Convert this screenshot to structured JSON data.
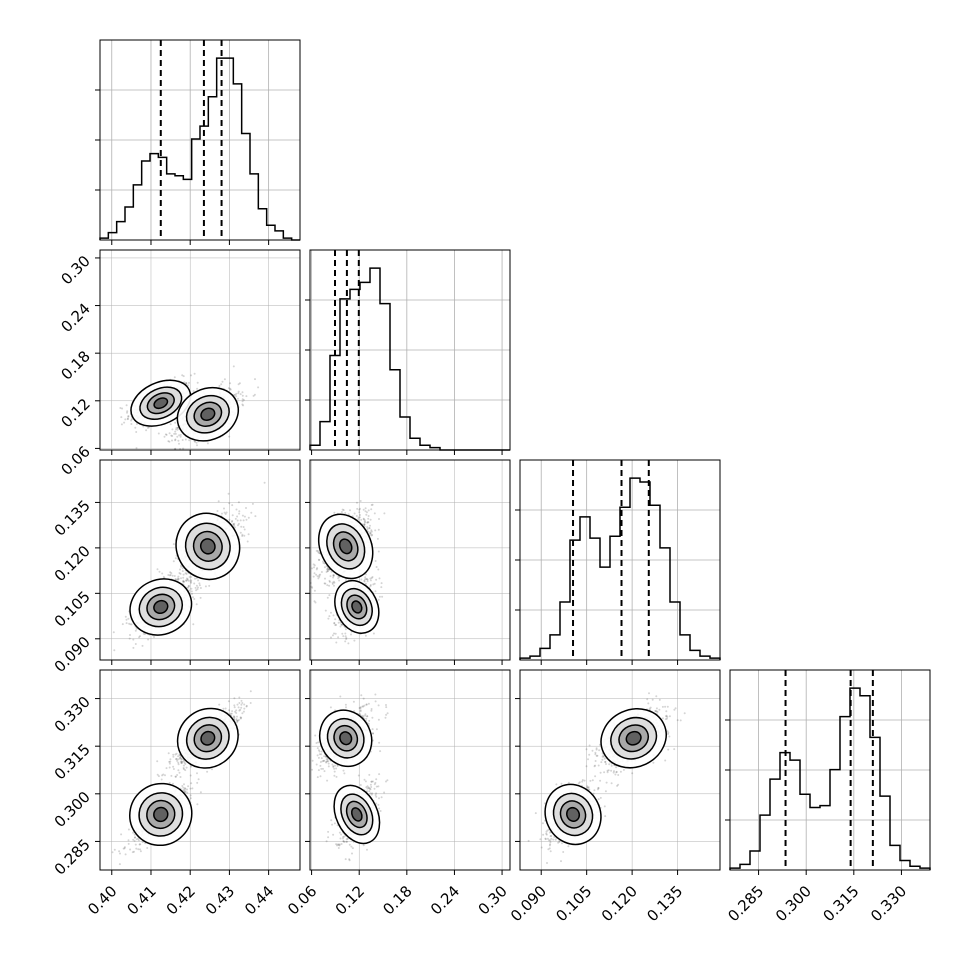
{
  "chart_data": {
    "type": "corner",
    "parameters": 4,
    "colors": {
      "line": "#000000",
      "grid": "#b0b0b0",
      "scatter": "#404040"
    },
    "grid": true,
    "diagonal_type": "step histogram",
    "offdiagonal_type": "2d histogram with density contours and scatter",
    "axes": [
      {
        "range": [
          0.397,
          0.448
        ],
        "ticks": [
          0.4,
          0.41,
          0.42,
          0.43,
          0.44
        ],
        "tick_labels": [
          "0.40",
          "0.41",
          "0.42",
          "0.43",
          "0.44"
        ]
      },
      {
        "range": [
          0.058,
          0.31
        ],
        "ticks": [
          0.06,
          0.12,
          0.18,
          0.24,
          0.3
        ],
        "tick_labels": [
          "0.06",
          "0.12",
          "0.18",
          "0.24",
          "0.30"
        ]
      },
      {
        "range": [
          0.083,
          0.149
        ],
        "ticks": [
          0.09,
          0.105,
          0.12,
          0.135
        ],
        "tick_labels": [
          "0.090",
          "0.105",
          "0.120",
          "0.135"
        ]
      },
      {
        "range": [
          0.276,
          0.339
        ],
        "ticks": [
          0.285,
          0.3,
          0.315,
          0.33
        ],
        "tick_labels": [
          "0.285",
          "0.300",
          "0.315",
          "0.330"
        ]
      }
    ],
    "histograms": [
      {
        "counts": [
          1,
          4,
          10,
          18,
          30,
          43,
          47,
          45,
          36,
          35,
          33,
          55,
          62,
          78,
          99,
          99,
          85,
          58,
          36,
          17,
          8,
          5,
          1,
          0
        ],
        "quantiles": [
          0.4125,
          0.4235,
          0.428
        ]
      },
      {
        "counts": [
          2,
          12,
          40,
          64,
          68,
          71,
          77,
          62,
          34,
          14,
          5,
          2,
          1,
          0,
          0,
          0,
          0,
          0,
          0,
          0
        ],
        "quantiles": [
          0.0895,
          0.1045,
          0.1195
        ]
      },
      {
        "counts": [
          1,
          2,
          6,
          13,
          30,
          62,
          74,
          63,
          48,
          64,
          79,
          94,
          92,
          80,
          58,
          30,
          13,
          5,
          2,
          1
        ],
        "quantiles": [
          0.1005,
          0.1165,
          0.1255
        ]
      },
      {
        "counts": [
          1,
          3,
          10,
          29,
          48,
          62,
          58,
          40,
          33,
          34,
          53,
          81,
          96,
          92,
          70,
          39,
          13,
          5,
          2,
          1
        ],
        "quantiles": [
          0.2935,
          0.314,
          0.321
        ]
      }
    ],
    "clusters": [
      {
        "mean": [
          0.4125,
          0.117,
          0.1005,
          0.2935
        ],
        "std": [
          0.004,
          0.013,
          0.0045,
          0.0048
        ]
      },
      {
        "mean": [
          0.4245,
          0.103,
          0.1205,
          0.3175
        ],
        "std": [
          0.004,
          0.016,
          0.0055,
          0.0045
        ]
      }
    ]
  }
}
